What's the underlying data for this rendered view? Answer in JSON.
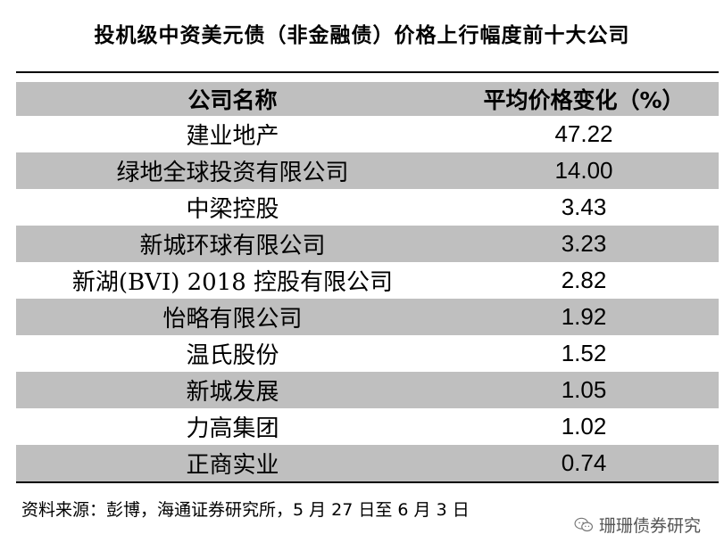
{
  "title": "投机级中资美元债（非金融债）价格上行幅度前十大公司",
  "table": {
    "headers": [
      "公司名称",
      "平均价格变化（%）"
    ],
    "rows": [
      {
        "company": "建业地产",
        "change": "47.22"
      },
      {
        "company": "绿地全球投资有限公司",
        "change": "14.00"
      },
      {
        "company": "中梁控股",
        "change": "3.43"
      },
      {
        "company": "新城环球有限公司",
        "change": "3.23"
      },
      {
        "company": "新湖(BVI) 2018 控股有限公司",
        "change": "2.82"
      },
      {
        "company": "怡略有限公司",
        "change": "1.92"
      },
      {
        "company": "温氏股份",
        "change": "1.52"
      },
      {
        "company": "新城发展",
        "change": "1.05"
      },
      {
        "company": "力高集团",
        "change": "1.02"
      },
      {
        "company": "正商实业",
        "change": "0.74"
      }
    ]
  },
  "footer": "资料来源：彭博，海通证券研究所，5 月 27 日至 6 月 3 日",
  "watermark": {
    "text": "珊珊债券研究",
    "icon": "wechat-icon"
  }
}
